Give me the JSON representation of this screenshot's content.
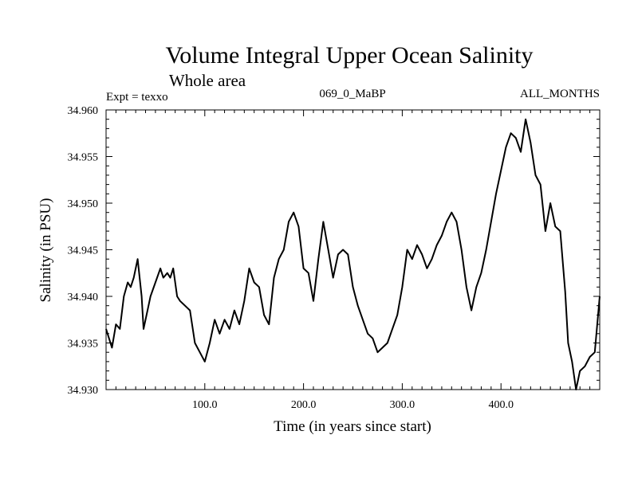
{
  "header": {
    "title": "Volume Integral Upper Ocean Salinity",
    "subtitle": "Whole area",
    "experiment": "Expt = texxo",
    "run_id": "069_0_MaBP",
    "months": "ALL_MONTHS"
  },
  "chart_data": {
    "type": "line",
    "title": "Volume Integral Upper Ocean Salinity",
    "xlabel": "Time (in years since start)",
    "ylabel": "Salinity (in PSU)",
    "xlim": [
      0,
      500
    ],
    "ylim": [
      34.93,
      34.96
    ],
    "x_ticks": [
      {
        "value": 100,
        "label": "100.0"
      },
      {
        "value": 200,
        "label": "200.0"
      },
      {
        "value": 300,
        "label": "300.0"
      },
      {
        "value": 400,
        "label": "400.0"
      }
    ],
    "y_ticks": [
      {
        "value": 34.93,
        "label": "34.930"
      },
      {
        "value": 34.935,
        "label": "34.935"
      },
      {
        "value": 34.94,
        "label": "34.940"
      },
      {
        "value": 34.945,
        "label": "34.945"
      },
      {
        "value": 34.95,
        "label": "34.950"
      },
      {
        "value": 34.955,
        "label": "34.955"
      },
      {
        "value": 34.96,
        "label": "34.960"
      }
    ],
    "grid": false,
    "series": [
      {
        "name": "salinity",
        "color": "#000000",
        "x": [
          0,
          3,
          6,
          10,
          14,
          18,
          22,
          25,
          28,
          32,
          36,
          38,
          42,
          45,
          50,
          55,
          58,
          62,
          65,
          68,
          72,
          75,
          80,
          85,
          90,
          95,
          100,
          105,
          110,
          115,
          120,
          125,
          130,
          135,
          140,
          145,
          150,
          155,
          160,
          165,
          170,
          175,
          180,
          185,
          190,
          195,
          200,
          205,
          210,
          215,
          220,
          225,
          230,
          235,
          240,
          245,
          250,
          255,
          260,
          265,
          270,
          275,
          280,
          285,
          290,
          295,
          300,
          305,
          310,
          315,
          320,
          325,
          330,
          335,
          340,
          345,
          350,
          355,
          360,
          365,
          370,
          375,
          380,
          385,
          390,
          395,
          400,
          405,
          410,
          415,
          420,
          425,
          430,
          435,
          440,
          445,
          450,
          455,
          460,
          465,
          468,
          472,
          476,
          480,
          485,
          490,
          495,
          500
        ],
        "values": [
          34.9365,
          34.9355,
          34.9345,
          34.937,
          34.9365,
          34.94,
          34.9415,
          34.941,
          34.942,
          34.944,
          34.94,
          34.9365,
          34.9385,
          34.94,
          34.9415,
          34.943,
          34.942,
          34.9425,
          34.942,
          34.943,
          34.94,
          34.9395,
          34.939,
          34.9385,
          34.935,
          34.934,
          34.933,
          34.935,
          34.9375,
          34.936,
          34.9375,
          34.9365,
          34.9385,
          34.937,
          34.9395,
          34.943,
          34.9415,
          34.941,
          34.938,
          34.937,
          34.942,
          34.944,
          34.945,
          34.948,
          34.949,
          34.9475,
          34.943,
          34.9425,
          34.9395,
          34.944,
          34.948,
          34.945,
          34.942,
          34.9445,
          34.945,
          34.9445,
          34.941,
          34.939,
          34.9375,
          34.936,
          34.9355,
          34.934,
          34.9345,
          34.935,
          34.9365,
          34.938,
          34.941,
          34.945,
          34.944,
          34.9455,
          34.9445,
          34.943,
          34.944,
          34.9455,
          34.9465,
          34.948,
          34.949,
          34.948,
          34.945,
          34.941,
          34.9385,
          34.941,
          34.9425,
          34.945,
          34.948,
          34.951,
          34.9535,
          34.956,
          34.9575,
          34.957,
          34.9555,
          34.959,
          34.9565,
          34.953,
          34.952,
          34.947,
          34.95,
          34.9475,
          34.947,
          34.9405,
          34.935,
          34.933,
          34.93,
          34.932,
          34.9325,
          34.9335,
          34.934,
          34.94
        ]
      }
    ]
  }
}
